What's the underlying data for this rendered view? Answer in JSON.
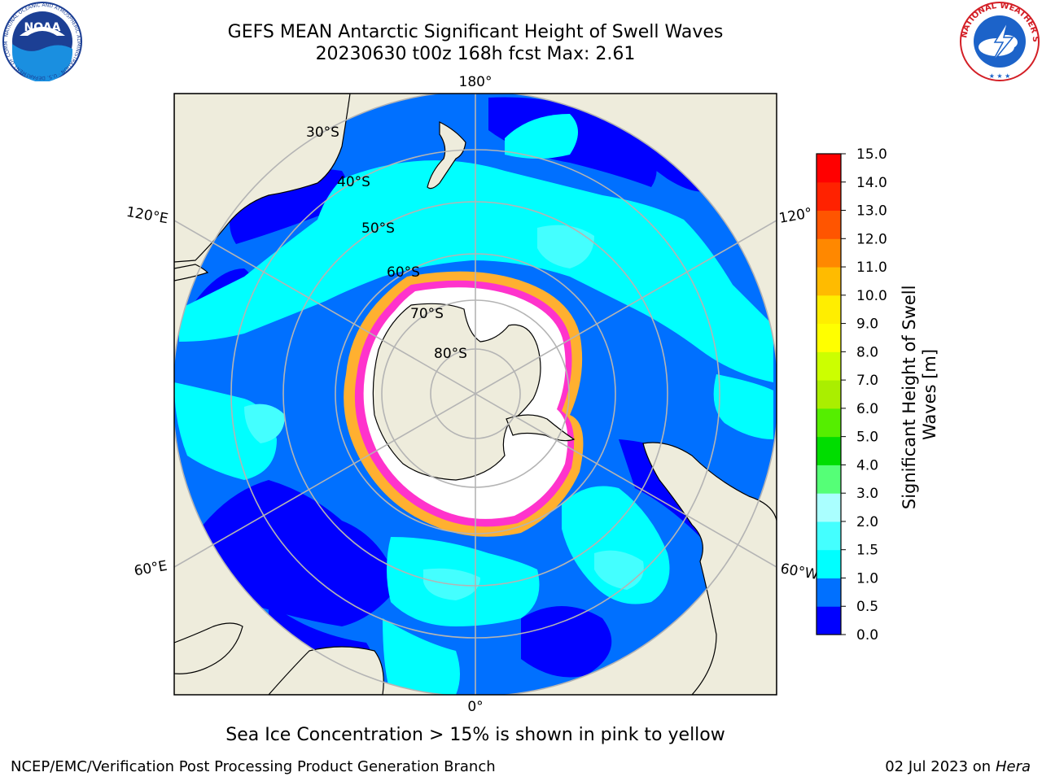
{
  "title": {
    "line1": "GEFS MEAN Antarctic Significant Height of Swell Waves",
    "line2": "20230630 t00z 168h fcst   Max: 2.61"
  },
  "logos": {
    "left": {
      "text": "NOAA",
      "ring_text": "NATIONAL OCEANIC AND ATMOSPHERIC ADMINISTRATION · U.S. DEPARTMENT OF COMMERCE",
      "icon": "noaa-logo-icon"
    },
    "right": {
      "ring_text": "NATIONAL WEATHER SERVICE",
      "icon": "nws-logo-icon"
    }
  },
  "map": {
    "projection": "south-polar-stereographic",
    "longitude_labels": {
      "top": "180°",
      "bottom": "0°",
      "left_upper": "120°E",
      "left_lower": "60°E",
      "right_upper": "120°",
      "right_lower": "60°W"
    },
    "latitude_labels": [
      "30°S",
      "40°S",
      "50°S",
      "60°S",
      "70°S",
      "80°S"
    ],
    "colors": {
      "land": "#eeecdc",
      "ocean_low": "#0000ff",
      "ocean_mid": "#0070ff",
      "ocean_high": "#00ffff",
      "ocean_peak": "#44ffff",
      "sea_ice": "#ffffff",
      "ice_edge": "#ff33cc",
      "ice_edge_inner": "#ffb030",
      "grid": "#b4b4b4"
    }
  },
  "colorbar": {
    "label_line1": "Significant Height of Swell",
    "label_line2": "Waves [m]",
    "ticks": [
      "0.0",
      "0.5",
      "1.0",
      "1.5",
      "2.0",
      "3.0",
      "4.0",
      "5.0",
      "6.0",
      "7.0",
      "8.0",
      "9.0",
      "10.0",
      "11.0",
      "12.0",
      "13.0",
      "14.0",
      "15.0"
    ],
    "colors": [
      "#0000ff",
      "#0070ff",
      "#00ffff",
      "#44ffff",
      "#aaffff",
      "#55ff77",
      "#00dd00",
      "#55ee00",
      "#aaee00",
      "#ccff00",
      "#ffff00",
      "#ffee00",
      "#ffbb00",
      "#ff8800",
      "#ff5500",
      "#ff2200",
      "#ff0000"
    ]
  },
  "footnote": "Sea Ice Concentration > 15% is shown in pink to yellow",
  "credit": "NCEP/EMC/Verification Post Processing Product Generation Branch",
  "datestamp": {
    "date": "02 Jul 2023 on",
    "host": "Hera"
  }
}
